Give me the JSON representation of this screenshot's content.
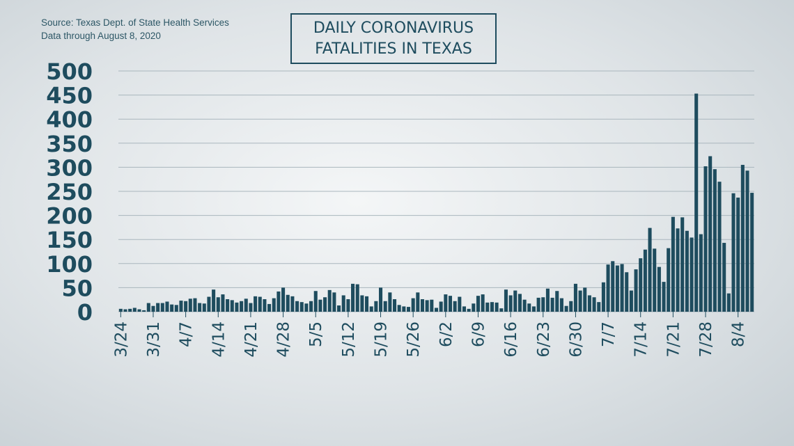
{
  "header": {
    "source_line1": "Source: Texas Dept. of State Health Services",
    "source_line2": "Data through August 8, 2020",
    "title_line1": "DAILY CORONAVIRUS",
    "title_line2": "FATALITIES IN TEXAS"
  },
  "colors": {
    "bar": "#1e4c5e",
    "text": "#1e4c5e",
    "grid": "#a9b6bd"
  },
  "chart_data": {
    "type": "bar",
    "title": "DAILY CORONAVIRUS FATALITIES IN TEXAS",
    "xlabel": "",
    "ylabel": "",
    "ylim": [
      0,
      500
    ],
    "grid": true,
    "yticks": [
      0,
      50,
      100,
      150,
      200,
      250,
      300,
      350,
      400,
      450,
      500
    ],
    "xticks": [
      {
        "label": "3/24",
        "index": 0
      },
      {
        "label": "3/31",
        "index": 7
      },
      {
        "label": "4/7",
        "index": 14
      },
      {
        "label": "4/14",
        "index": 21
      },
      {
        "label": "4/21",
        "index": 28
      },
      {
        "label": "4/28",
        "index": 35
      },
      {
        "label": "5/5",
        "index": 42
      },
      {
        "label": "5/12",
        "index": 49
      },
      {
        "label": "5/19",
        "index": 56
      },
      {
        "label": "5/26",
        "index": 63
      },
      {
        "label": "6/2",
        "index": 70
      },
      {
        "label": "6/9",
        "index": 77
      },
      {
        "label": "6/16",
        "index": 84
      },
      {
        "label": "6/23",
        "index": 91
      },
      {
        "label": "6/30",
        "index": 98
      },
      {
        "label": "7/7",
        "index": 105
      },
      {
        "label": "7/14",
        "index": 112
      },
      {
        "label": "7/21",
        "index": 119
      },
      {
        "label": "7/28",
        "index": 126
      },
      {
        "label": "8/4",
        "index": 133
      }
    ],
    "values": [
      6,
      5,
      6,
      8,
      5,
      3,
      18,
      12,
      18,
      18,
      21,
      15,
      14,
      23,
      22,
      27,
      28,
      18,
      17,
      31,
      46,
      30,
      36,
      26,
      24,
      19,
      22,
      27,
      18,
      32,
      31,
      26,
      16,
      28,
      42,
      50,
      35,
      32,
      22,
      20,
      17,
      22,
      43,
      25,
      30,
      45,
      40,
      13,
      34,
      26,
      58,
      57,
      34,
      32,
      11,
      22,
      50,
      22,
      40,
      26,
      14,
      11,
      10,
      28,
      40,
      26,
      24,
      25,
      8,
      21,
      36,
      33,
      22,
      31,
      11,
      6,
      17,
      33,
      36,
      19,
      20,
      19,
      7,
      46,
      34,
      44,
      37,
      25,
      17,
      11,
      29,
      30,
      48,
      29,
      43,
      28,
      12,
      22,
      58,
      44,
      50,
      34,
      30,
      20,
      61,
      98,
      105,
      96,
      99,
      82,
      44,
      88,
      111,
      129,
      174,
      131,
      93,
      62,
      132,
      197,
      173,
      196,
      168,
      154,
      453,
      161,
      302,
      323,
      296,
      270,
      143,
      38,
      246,
      237,
      305,
      293,
      247
    ]
  }
}
